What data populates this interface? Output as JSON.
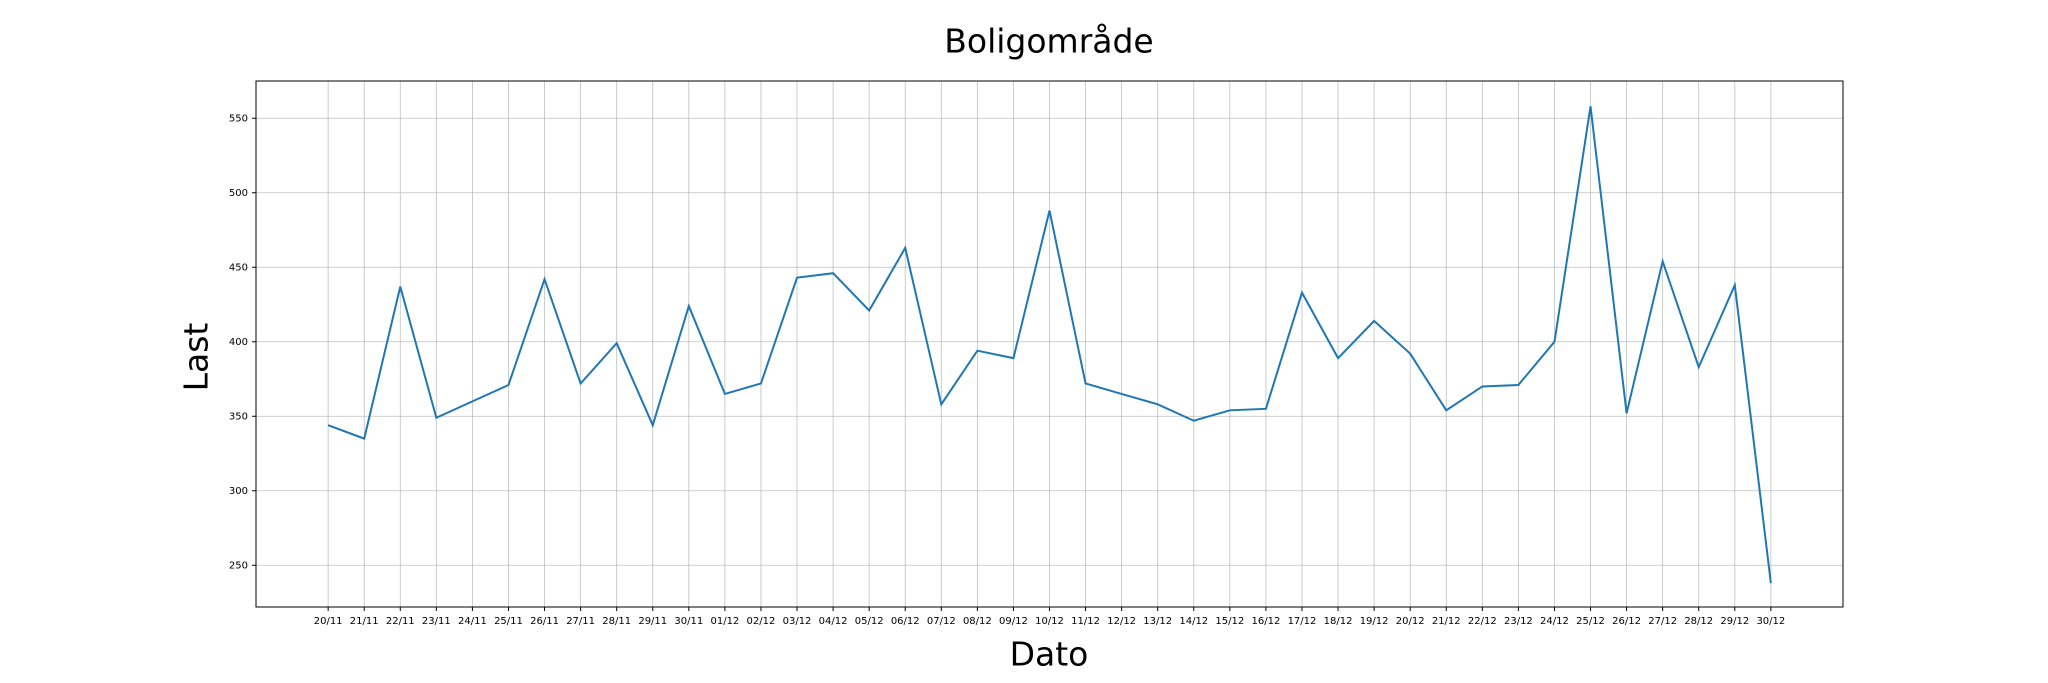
{
  "chart_data": {
    "type": "line",
    "title": "Boligområde",
    "x_label": "Dato",
    "y_label": "Last",
    "categories": [
      "20/11",
      "21/11",
      "22/11",
      "23/11",
      "24/11",
      "25/11",
      "26/11",
      "27/11",
      "28/11",
      "29/11",
      "30/11",
      "01/12",
      "02/12",
      "03/12",
      "04/12",
      "05/12",
      "06/12",
      "07/12",
      "08/12",
      "09/12",
      "10/12",
      "11/12",
      "12/12",
      "13/12",
      "14/12",
      "15/12",
      "16/12",
      "17/12",
      "18/12",
      "19/12",
      "20/12",
      "21/12",
      "22/12",
      "23/12",
      "24/12",
      "25/12",
      "26/12",
      "27/12",
      "28/12",
      "29/12",
      "30/12"
    ],
    "series": [
      {
        "name": "Last",
        "color": "#1f77b4",
        "values": [
          344,
          335,
          437,
          349,
          360,
          371,
          442,
          372,
          399,
          344,
          424,
          365,
          372,
          443,
          446,
          421,
          463,
          358,
          394,
          389,
          488,
          372,
          365,
          358,
          347,
          354,
          355,
          433,
          389,
          414,
          392,
          354,
          370,
          371,
          400,
          558,
          352,
          454,
          383,
          438,
          238
        ]
      }
    ],
    "ylim": [
      222,
      575
    ],
    "yticks": [
      250,
      300,
      350,
      400,
      450,
      500,
      550
    ],
    "grid": true
  }
}
